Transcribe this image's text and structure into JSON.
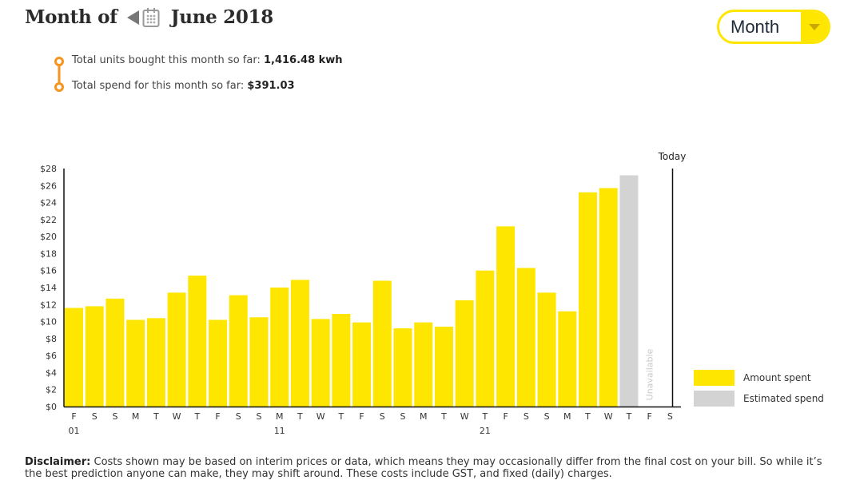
{
  "header": {
    "title_prefix": "Month of",
    "title_month": "June 2018",
    "prev_icon": "triangle-left-icon",
    "calendar_icon": "calendar-icon",
    "period_select": "Month"
  },
  "stats": {
    "units_label": "Total units bought this month so far: ",
    "units_value": "1,416.48 kwh",
    "spend_label": "Total spend for this month so far: ",
    "spend_value": "$391.03"
  },
  "colors": {
    "accent": "#ffe600",
    "estimated": "#d3d3d3",
    "timeline": "#f7941d"
  },
  "chart_data": {
    "type": "bar",
    "title": "",
    "xlabel": "",
    "ylabel": "",
    "ylim": [
      0,
      28
    ],
    "yticks": [
      "$0",
      "$2",
      "$4",
      "$6",
      "$8",
      "$10",
      "$12",
      "$14",
      "$16",
      "$18",
      "$20",
      "$22",
      "$24",
      "$26",
      "$28"
    ],
    "categories": [
      "F",
      "S",
      "S",
      "M",
      "T",
      "W",
      "T",
      "F",
      "S",
      "S",
      "M",
      "T",
      "W",
      "T",
      "F",
      "S",
      "S",
      "M",
      "T",
      "W",
      "T",
      "F",
      "S",
      "S",
      "M",
      "T",
      "W",
      "T",
      "F",
      "S"
    ],
    "date_labels": [
      {
        "index": 0,
        "label": "01"
      },
      {
        "index": 10,
        "label": "11"
      },
      {
        "index": 20,
        "label": "21"
      }
    ],
    "series": [
      {
        "name": "Amount spent",
        "color": "#ffe600",
        "values": [
          11.6,
          11.8,
          12.7,
          10.2,
          10.4,
          13.4,
          15.4,
          10.2,
          13.1,
          10.5,
          14.0,
          14.9,
          10.3,
          10.9,
          9.9,
          14.8,
          9.2,
          9.9,
          9.4,
          12.5,
          16.0,
          21.2,
          16.3,
          13.4,
          11.2,
          25.2,
          25.7,
          null,
          null,
          null
        ]
      },
      {
        "name": "Estimated spend",
        "color": "#d3d3d3",
        "values": [
          null,
          null,
          null,
          null,
          null,
          null,
          null,
          null,
          null,
          null,
          null,
          null,
          null,
          null,
          null,
          null,
          null,
          null,
          null,
          null,
          null,
          null,
          null,
          null,
          null,
          null,
          null,
          27.2,
          null,
          null
        ]
      }
    ],
    "unavailable_index": 28,
    "unavailable_label": "Unavailable",
    "today_label": "Today",
    "legend": [
      "Amount spent",
      "Estimated spend"
    ],
    "legend_position": "bottom-right"
  },
  "disclaimer": {
    "label": "Disclaimer:",
    "text": " Costs shown may be based on interim prices or data, which means they may occasionally differ from the final cost on your bill. So while it’s the best prediction anyone can make, they may shift around. These costs include GST, and fixed (daily) charges."
  }
}
